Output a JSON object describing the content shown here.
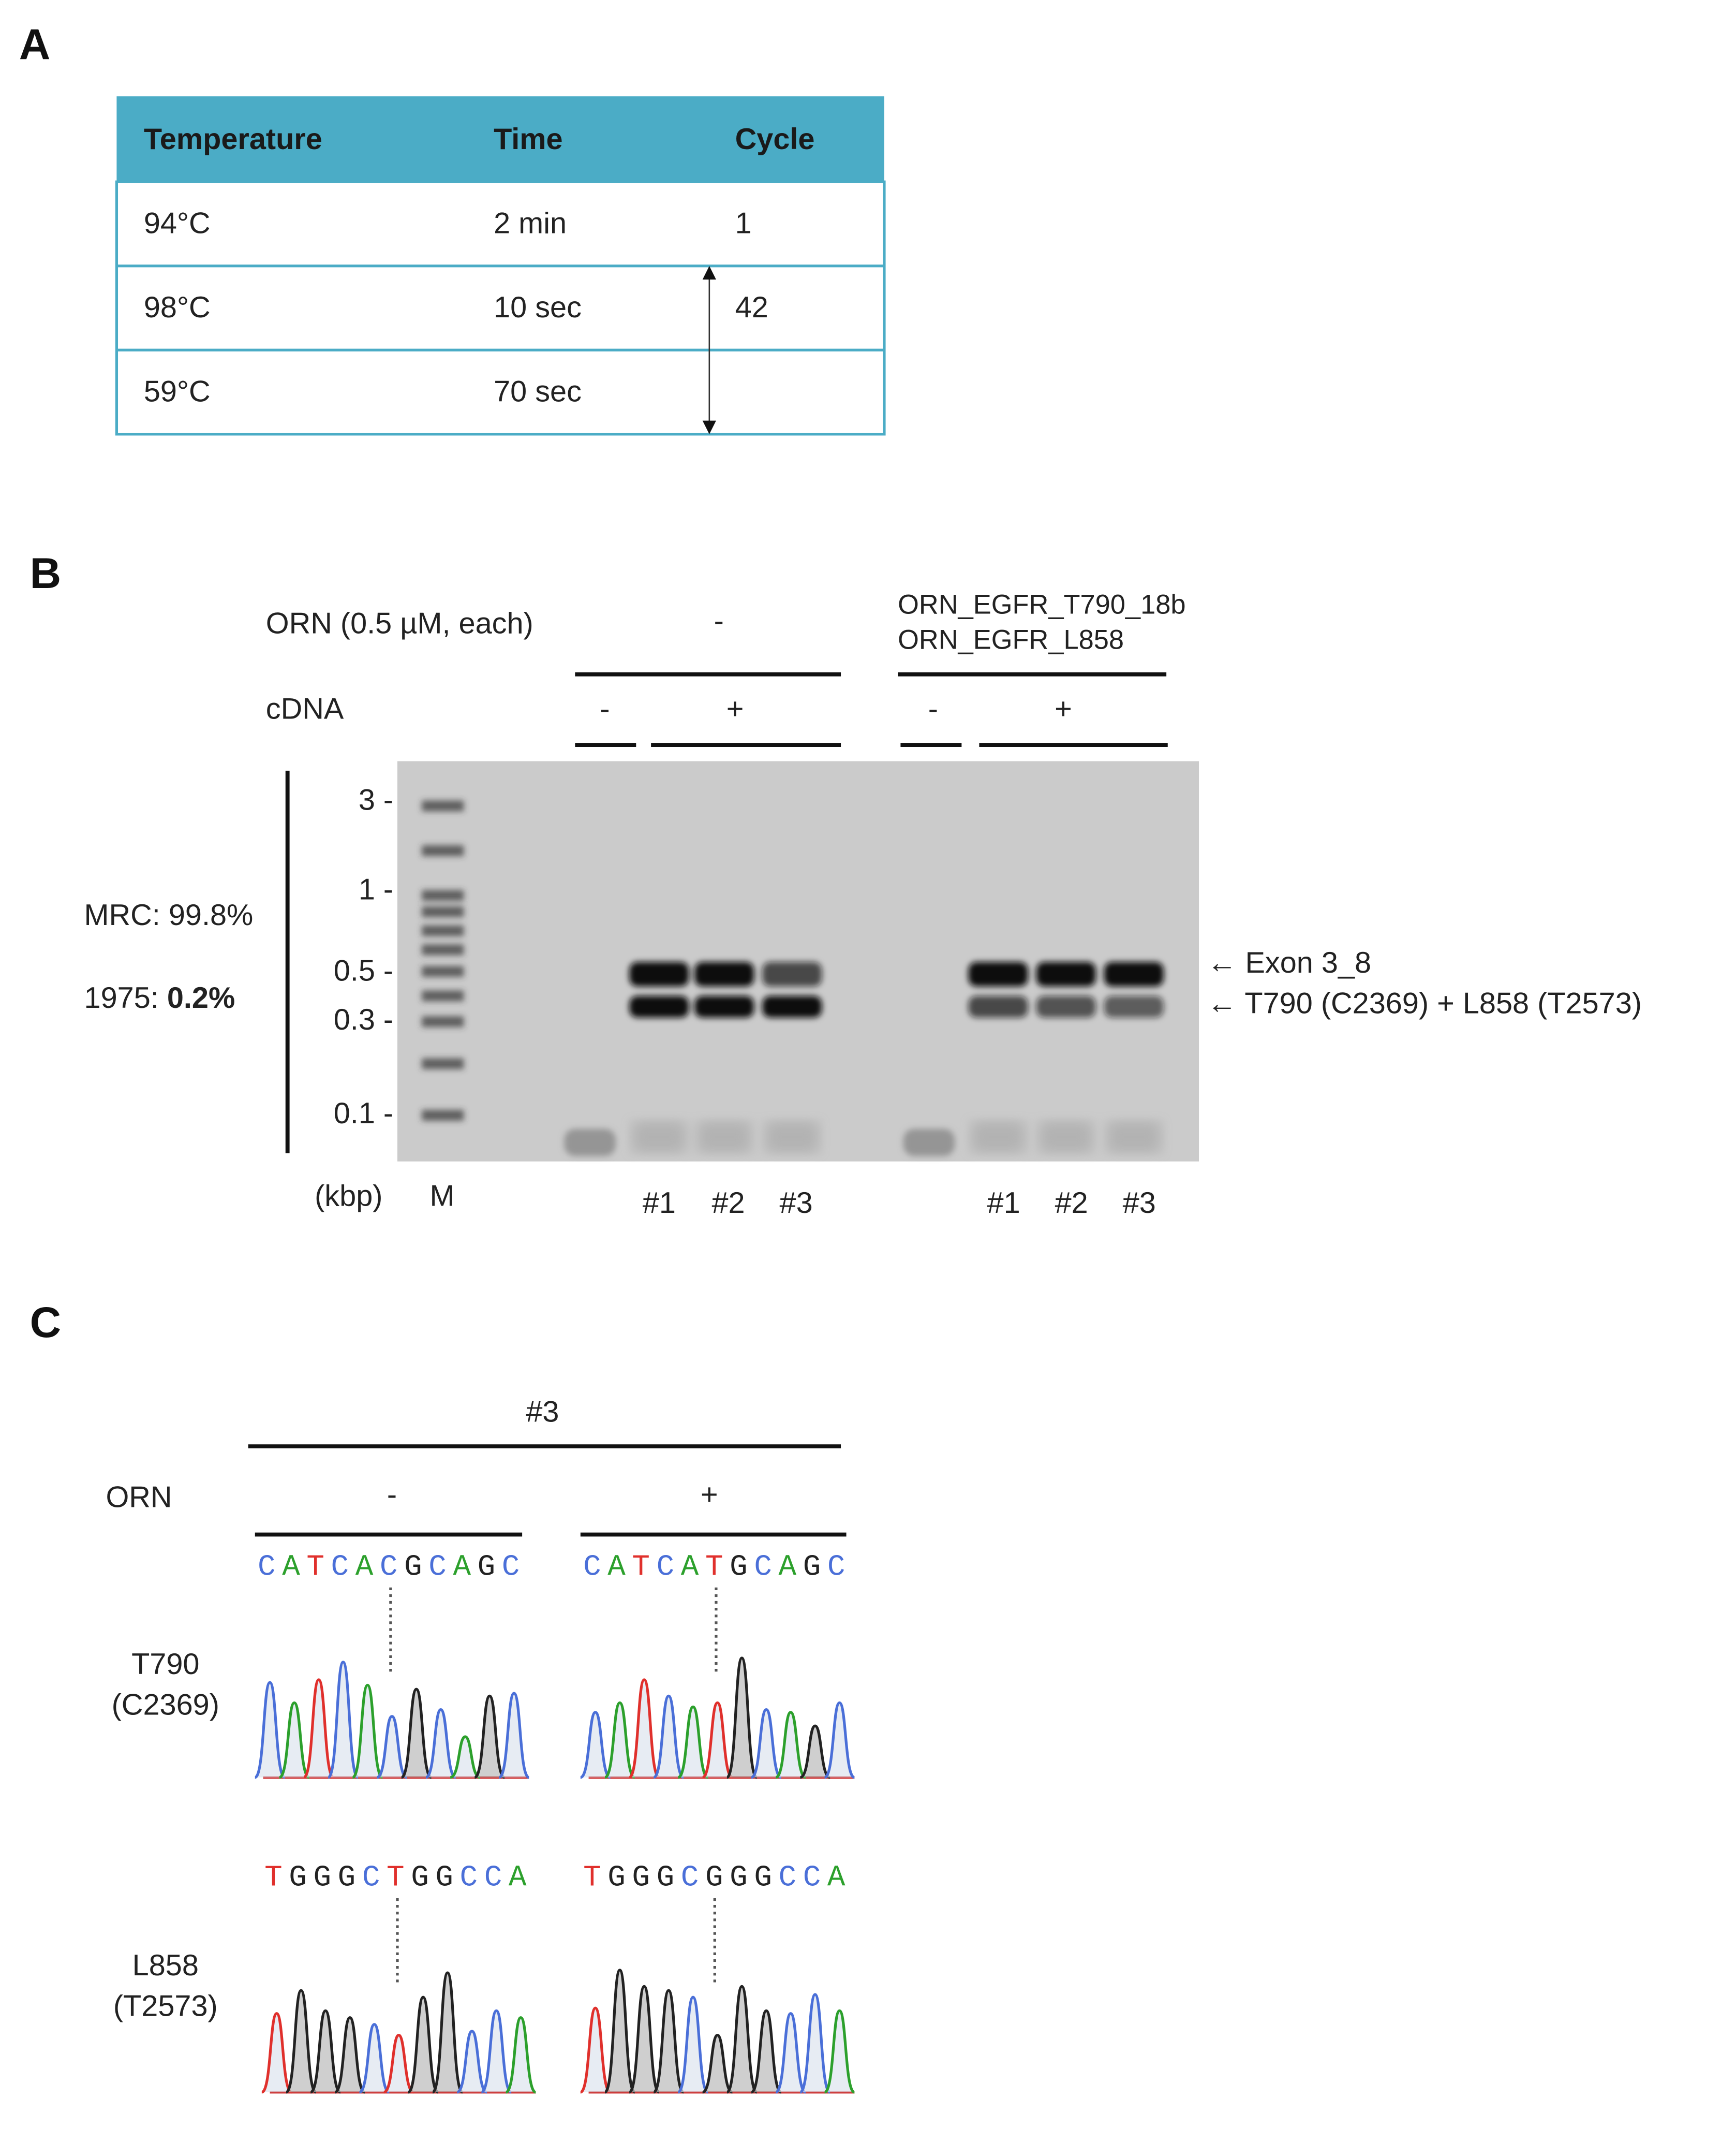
{
  "panel_a": {
    "label": "A",
    "table": {
      "header": [
        "Temperature",
        "Time",
        "Cycle"
      ],
      "rows": [
        [
          "94°C",
          "2 min",
          "1"
        ],
        [
          "98°C",
          "10 sec",
          "42"
        ],
        [
          "59°C",
          "70 sec"
        ]
      ]
    }
  },
  "panel_b": {
    "label": "B",
    "orn_label": "ORN (0.5 µM, each)",
    "orn_minus": "-",
    "orn_plus_lines": [
      "ORN_EGFR_T790_18b",
      "ORN_EGFR_L858"
    ],
    "cdna_label": "cDNA",
    "cdna_states": [
      "-",
      "+",
      "-",
      "+"
    ],
    "mrc": "MRC: 99.8%",
    "cell_1975_prefix": "1975: ",
    "cell_1975_value": "0.2%",
    "marker_sizes": [
      "3 -",
      "1 -",
      "0.5 -",
      "0.3 -",
      "0.1 -"
    ],
    "unit": "(kbp)",
    "lanes": [
      "M",
      "#1",
      "#2",
      "#3",
      "#1",
      "#2",
      "#3"
    ],
    "band_labels": [
      "← Exon 3_8",
      "← T790 (C2369) + L858 (T2573)"
    ]
  },
  "panel_c": {
    "label": "C",
    "sample": "#3",
    "orn_label": "ORN",
    "orn_states": [
      "-",
      "+"
    ],
    "rows": [
      {
        "name_lines": [
          "T790",
          "(C2369)"
        ],
        "sequences": [
          "CATCACGCAGC",
          "CATCATGCAGC"
        ]
      },
      {
        "name_lines": [
          "L858",
          "(T2573)"
        ],
        "sequences": [
          "TGGGCTGGCCA",
          "TGGGCGGGCCA"
        ]
      }
    ]
  }
}
